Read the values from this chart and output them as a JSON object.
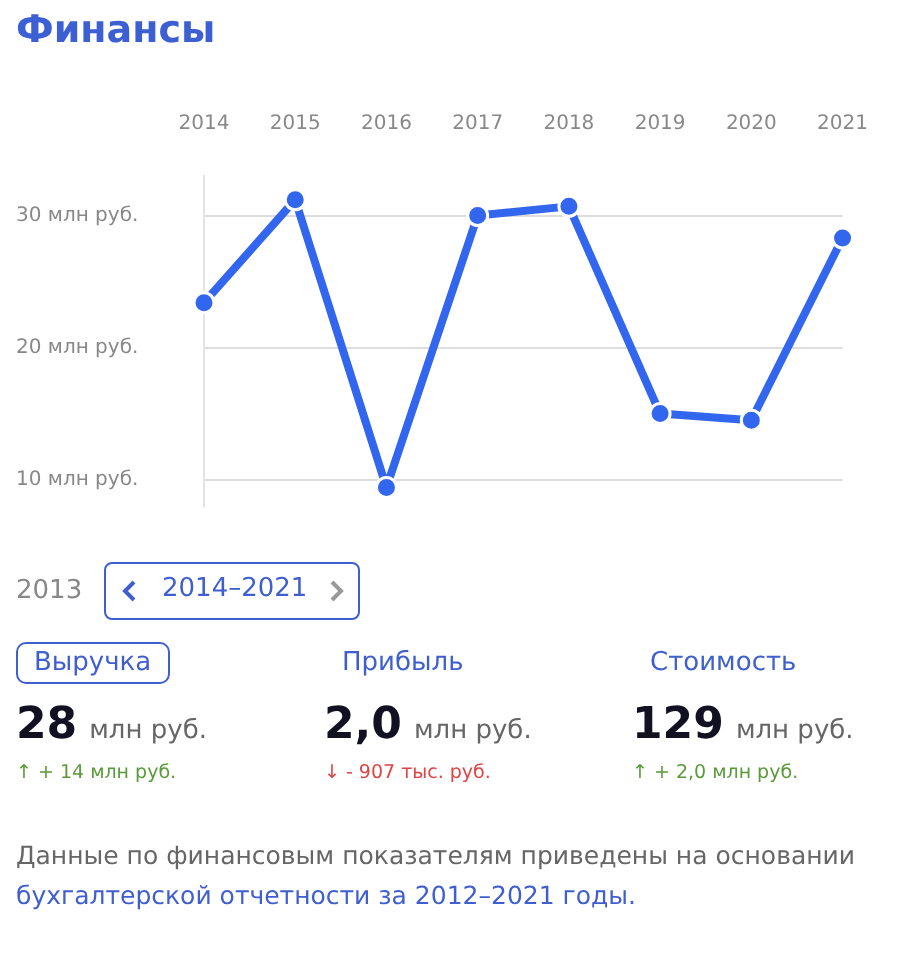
{
  "chart_data": {
    "type": "line",
    "title": "Финансы",
    "categories": [
      "2014",
      "2015",
      "2016",
      "2017",
      "2018",
      "2019",
      "2020",
      "2021"
    ],
    "series": [
      {
        "color": "#3366ee",
        "values": [
          23.4,
          31.2,
          9.4,
          30.0,
          30.7,
          15.0,
          14.5,
          28.3
        ]
      }
    ],
    "ylim": [
      8,
      33
    ],
    "yticks": [
      {
        "value": 10,
        "label": "10 млн руб."
      },
      {
        "value": 20,
        "label": "20 млн руб."
      },
      {
        "value": 30,
        "label": "30 млн руб."
      }
    ],
    "grid": "y",
    "legend": false,
    "marker": "circle",
    "line_style": "solid",
    "annotations": [
      "2013",
      "2014–2021",
      "Выручка",
      "28",
      "млн руб.",
      "↑ + 14 млн руб.",
      "Прибыль",
      "2,0",
      "млн руб.",
      "↓ - 907 тыс. руб.",
      "Стоимость",
      "129",
      "млн руб.",
      "↑ + 2,0 млн руб.",
      "Данные по финансовым показателям приведены на основании ",
      "бухгалтерской отчетности за 2012–2021 годы."
    ]
  }
}
